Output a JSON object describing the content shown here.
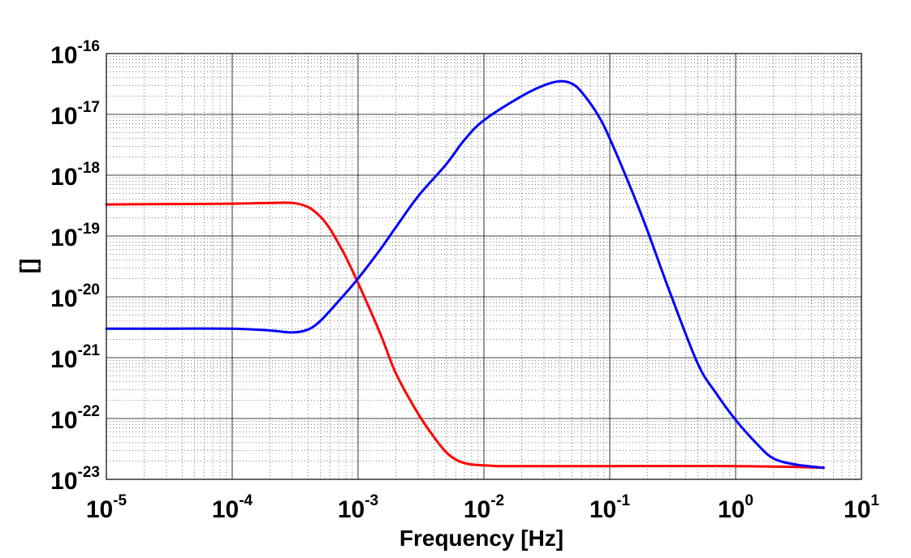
{
  "chart_data": {
    "type": "line",
    "title": "",
    "xlabel": "Frequency  [Hz]",
    "ylabel": "[]",
    "xscale": "log",
    "yscale": "log",
    "xlim": [
      1e-05,
      10
    ],
    "ylim": [
      1e-23,
      1e-16
    ],
    "grid": true,
    "minor_grid": true,
    "legend": "none",
    "x_ticks": [
      {
        "base": "10",
        "exp": "-5"
      },
      {
        "base": "10",
        "exp": "-4"
      },
      {
        "base": "10",
        "exp": "-3"
      },
      {
        "base": "10",
        "exp": "-2"
      },
      {
        "base": "10",
        "exp": "-1"
      },
      {
        "base": "10",
        "exp": "0"
      },
      {
        "base": "10",
        "exp": "1"
      }
    ],
    "y_ticks": [
      {
        "base": "10",
        "exp": "-23"
      },
      {
        "base": "10",
        "exp": "-22"
      },
      {
        "base": "10",
        "exp": "-21"
      },
      {
        "base": "10",
        "exp": "-20"
      },
      {
        "base": "10",
        "exp": "-19"
      },
      {
        "base": "10",
        "exp": "-18"
      },
      {
        "base": "10",
        "exp": "-17"
      },
      {
        "base": "10",
        "exp": "-16"
      }
    ],
    "series": [
      {
        "color": "#ff0000",
        "x": [
          1e-05,
          3e-05,
          0.0001,
          0.0002,
          0.0003,
          0.0004,
          0.0005,
          0.0006,
          0.0007,
          0.0008,
          0.001,
          0.0015,
          0.002,
          0.003,
          0.004,
          0.005,
          0.006,
          0.007,
          0.008,
          0.01,
          0.013,
          0.02,
          0.05,
          0.1,
          1,
          2,
          3,
          5
        ],
        "y": [
          3.3e-19,
          3.35e-19,
          3.4e-19,
          3.5e-19,
          3.5e-19,
          3e-19,
          2.1e-19,
          1.3e-19,
          7.5e-20,
          4.5e-20,
          1.7e-20,
          2.5e-21,
          5.5e-22,
          1.2e-22,
          5e-23,
          2.8e-23,
          2.1e-23,
          1.85e-23,
          1.75e-23,
          1.7e-23,
          1.65e-23,
          1.65e-23,
          1.65e-23,
          1.65e-23,
          1.65e-23,
          1.62e-23,
          1.6e-23,
          1.55e-23
        ]
      },
      {
        "color": "#0000ff",
        "x": [
          1e-05,
          3e-05,
          0.0001,
          0.0002,
          0.0003,
          0.0004,
          0.0005,
          0.0007,
          0.001,
          0.0015,
          0.002,
          0.003,
          0.005,
          0.007,
          0.01,
          0.02,
          0.03,
          0.04,
          0.05,
          0.06,
          0.08,
          0.1,
          0.15,
          0.2,
          0.3,
          0.5,
          0.7,
          1,
          1.5,
          2,
          3,
          5
        ],
        "y": [
          3e-21,
          3e-21,
          3e-21,
          2.8e-21,
          2.6e-21,
          2.9e-21,
          4e-21,
          8.5e-21,
          2e-20,
          6e-20,
          1.4e-19,
          4.5e-19,
          1.5e-18,
          3.8e-18,
          8e-18,
          2e-17,
          3e-17,
          3.5e-17,
          3.2e-17,
          2.3e-17,
          1e-17,
          4e-18,
          5.5e-19,
          1.2e-19,
          1.2e-20,
          8e-22,
          2.6e-22,
          9.5e-23,
          3.7e-23,
          2.2e-23,
          1.75e-23,
          1.55e-23
        ]
      }
    ]
  }
}
